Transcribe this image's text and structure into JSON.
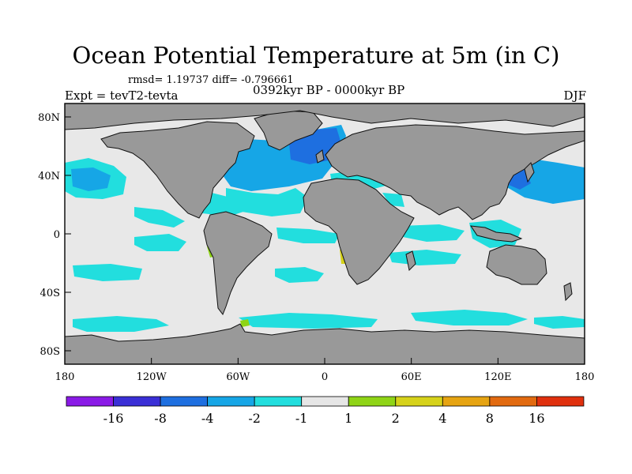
{
  "title": "Ocean Potential Temperature at 5m (in C)",
  "stats": "rmsd= 1.19737 diff= -0.796661",
  "period": "0392kyr BP - 0000kyr BP",
  "experiment": "Expt = tevT2-tevta",
  "season": "DJF",
  "axes": {
    "x_ticks": [
      "180",
      "120W",
      "60W",
      "0",
      "60E",
      "120E",
      "180"
    ],
    "y_ticks": [
      "80N",
      "40N",
      "0",
      "40S",
      "80S"
    ]
  },
  "colorbar": {
    "labels": [
      "-16",
      "-8",
      "-4",
      "-2",
      "-1",
      "1",
      "2",
      "4",
      "8",
      "16"
    ],
    "colors": [
      "#8a1ae6",
      "#3a2fd6",
      "#1e6fe0",
      "#16a6e6",
      "#22dede",
      "#e6e6e6",
      "#8fd416",
      "#d6d21a",
      "#e6a412",
      "#e26a10",
      "#e0300e"
    ]
  },
  "map_colors": {
    "land": "#999999",
    "no_change": "#e8e8e8",
    "cool_1_2": "#22dede",
    "cool_2_4": "#16a6e6",
    "cool_4_8": "#1e6fe0",
    "cool_8_16": "#3a2fd6",
    "warm_1_2": "#8fd416",
    "warm_2_4": "#d6d21a"
  }
}
